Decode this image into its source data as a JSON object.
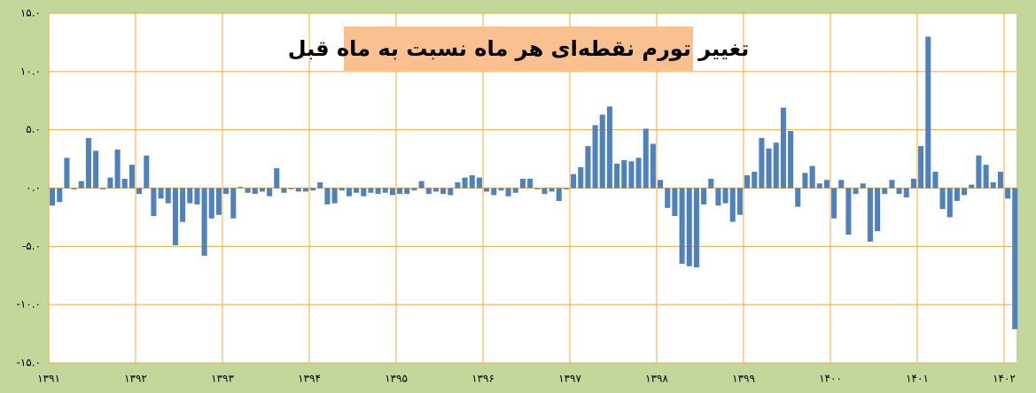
{
  "chart_data": {
    "type": "bar",
    "title": "تغییر تورم نقطه‌ای هر ماه نسبت به ماه قبل",
    "categories": [
      "۱۳۹۱",
      null,
      null,
      null,
      null,
      null,
      null,
      null,
      null,
      null,
      null,
      null,
      "۱۳۹۲",
      null,
      null,
      null,
      null,
      null,
      null,
      null,
      null,
      null,
      null,
      null,
      "۱۳۹۳",
      null,
      null,
      null,
      null,
      null,
      null,
      null,
      null,
      null,
      null,
      null,
      "۱۳۹۴",
      null,
      null,
      null,
      null,
      null,
      null,
      null,
      null,
      null,
      null,
      null,
      "۱۳۹۵",
      null,
      null,
      null,
      null,
      null,
      null,
      null,
      null,
      null,
      null,
      null,
      "۱۳۹۶",
      null,
      null,
      null,
      null,
      null,
      null,
      null,
      null,
      null,
      null,
      null,
      "۱۳۹۷",
      null,
      null,
      null,
      null,
      null,
      null,
      null,
      null,
      null,
      null,
      null,
      "۱۳۹۸",
      null,
      null,
      null,
      null,
      null,
      null,
      null,
      null,
      null,
      null,
      null,
      "۱۳۹۹",
      null,
      null,
      null,
      null,
      null,
      null,
      null,
      null,
      null,
      null,
      null,
      "۱۴۰۰",
      null,
      null,
      null,
      null,
      null,
      null,
      null,
      null,
      null,
      null,
      null,
      "۱۴۰۱",
      null,
      null,
      null,
      null,
      null,
      null,
      null,
      null,
      null,
      null,
      null,
      "۱۴۰۲",
      null
    ],
    "values": [
      -1.5,
      -1.2,
      2.6,
      -0.1,
      0.6,
      4.3,
      3.2,
      -0.1,
      0.9,
      3.3,
      0.8,
      2.0,
      -0.5,
      2.8,
      -2.4,
      -0.9,
      -1.3,
      -4.9,
      -2.9,
      -1.3,
      -1.4,
      -5.8,
      -2.6,
      -2.3,
      -0.5,
      -2.6,
      0.1,
      -0.4,
      -0.5,
      -0.3,
      -0.7,
      1.7,
      -0.4,
      -0.1,
      -0.3,
      -0.3,
      -0.2,
      0.5,
      -1.4,
      -1.3,
      -0.2,
      -0.7,
      -0.4,
      -0.7,
      -0.4,
      -0.5,
      -0.4,
      -0.6,
      -0.5,
      -0.5,
      -0.2,
      0.6,
      -0.5,
      -0.3,
      -0.5,
      -0.6,
      0.5,
      0.9,
      1.1,
      0.9,
      -0.3,
      -0.6,
      -0.2,
      -0.7,
      -0.4,
      0.8,
      0.8,
      -0.1,
      -0.5,
      -0.3,
      -1.1,
      -0.1,
      1.2,
      1.8,
      3.6,
      5.4,
      6.3,
      7.0,
      2.1,
      2.4,
      2.3,
      2.6,
      5.1,
      3.8,
      0.7,
      -1.7,
      -2.4,
      -6.5,
      -6.7,
      -6.8,
      -1.4,
      0.8,
      -1.5,
      -1.3,
      -2.9,
      -2.3,
      1.1,
      1.4,
      4.3,
      3.4,
      3.9,
      6.9,
      4.9,
      -1.6,
      1.3,
      1.9,
      0.4,
      0.7,
      -2.6,
      0.7,
      -4.0,
      -0.5,
      0.4,
      -4.6,
      -3.7,
      -0.5,
      0.7,
      -0.5,
      -0.8,
      0.8,
      3.6,
      13.0,
      1.4,
      -1.8,
      -2.5,
      -1.1,
      -0.6,
      0.3,
      2.8,
      2.0,
      0.5,
      1.4,
      -0.9,
      -12.1
    ],
    "color": "#4f81bd",
    "ylim": [
      -15,
      15
    ],
    "yticks": [
      {
        "value": -15,
        "label": "-۱۵.۰"
      },
      {
        "value": -10,
        "label": "-۱۰.۰"
      },
      {
        "value": -5,
        "label": "-۵.۰"
      },
      {
        "value": 0,
        "label": "۰.۰"
      },
      {
        "value": 5,
        "label": "۵.۰"
      },
      {
        "value": 10,
        "label": "۱۰.۰"
      },
      {
        "value": 15,
        "label": "۱۵.۰"
      }
    ],
    "grid": true
  }
}
